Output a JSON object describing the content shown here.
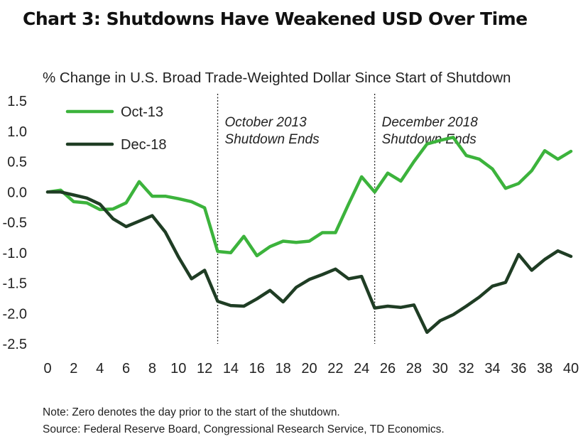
{
  "chart_data": {
    "type": "line",
    "title": "Chart 3: Shutdowns Have Weakened USD Over Time",
    "subtitle": "% Change in U.S. Broad Trade-Weighted Dollar Since Start of Shutdown",
    "xlabel": "",
    "ylabel": "",
    "xlim": [
      0,
      40
    ],
    "ylim": [
      -2.5,
      1.5
    ],
    "x_ticks": [
      0,
      2,
      4,
      6,
      8,
      10,
      12,
      14,
      16,
      18,
      20,
      22,
      24,
      26,
      28,
      30,
      32,
      34,
      36,
      38,
      40
    ],
    "y_ticks": [
      1.5,
      1.0,
      0.5,
      0.0,
      -0.5,
      -1.0,
      -1.5,
      -2.0,
      -2.5
    ],
    "y_tick_labels": [
      "1.5",
      "1.0",
      "0.5",
      "0.0",
      "-0.5",
      "-1.0",
      "-1.5",
      "-2.0",
      "-2.5"
    ],
    "grid": false,
    "legend_position": "top-left",
    "x": [
      0,
      1,
      2,
      3,
      4,
      5,
      6,
      7,
      8,
      9,
      10,
      11,
      12,
      13,
      14,
      15,
      16,
      17,
      18,
      19,
      20,
      21,
      22,
      23,
      24,
      25,
      26,
      27,
      28,
      29,
      30,
      31,
      32,
      33,
      34,
      35,
      36,
      37,
      38,
      39,
      40
    ],
    "series": [
      {
        "name": "Oct-13",
        "color": "#3cb33c",
        "values": [
          0.0,
          0.03,
          -0.16,
          -0.18,
          -0.29,
          -0.28,
          -0.18,
          0.17,
          -0.07,
          -0.07,
          -0.11,
          -0.16,
          -0.26,
          -0.98,
          -1.0,
          -0.73,
          -1.05,
          -0.9,
          -0.81,
          -0.83,
          -0.81,
          -0.67,
          -0.67,
          -0.2,
          0.25,
          0.0,
          0.31,
          0.18,
          0.5,
          0.79,
          0.85,
          0.9,
          0.6,
          0.54,
          0.38,
          0.06,
          0.14,
          0.35,
          0.68,
          0.54,
          0.67
        ]
      },
      {
        "name": "Dec-18",
        "color": "#1f3d24",
        "values": [
          0.0,
          0.0,
          -0.05,
          -0.1,
          -0.2,
          -0.44,
          -0.57,
          -0.48,
          -0.39,
          -0.66,
          -1.07,
          -1.43,
          -1.29,
          -1.8,
          -1.87,
          -1.88,
          -1.76,
          -1.62,
          -1.81,
          -1.57,
          -1.44,
          -1.36,
          -1.27,
          -1.43,
          -1.39,
          -1.91,
          -1.88,
          -1.9,
          -1.86,
          -2.31,
          -2.12,
          -2.02,
          -1.88,
          -1.73,
          -1.55,
          -1.49,
          -1.03,
          -1.29,
          -1.11,
          -0.97,
          -1.06
        ]
      }
    ],
    "annotations": [
      {
        "x": 13,
        "lines": [
          "October 2013",
          "Shutdown Ends"
        ]
      },
      {
        "x": 25,
        "lines": [
          "December 2018",
          "Shutdown Ends"
        ]
      }
    ]
  },
  "notes": {
    "line1": "Note: Zero denotes the day prior to the start of the shutdown.",
    "line2": "Source: Federal Reserve Board, Congressional Research Service, TD Economics."
  }
}
